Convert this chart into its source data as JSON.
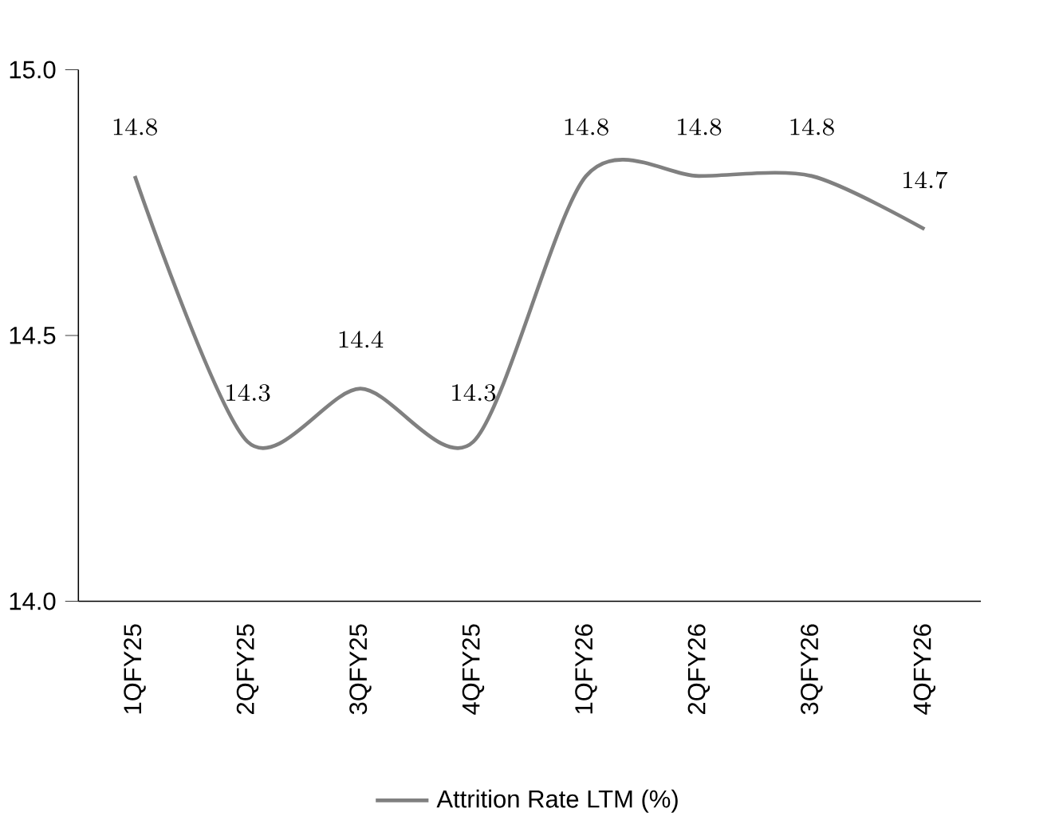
{
  "chart_data": {
    "type": "line",
    "categories": [
      "1QFY25",
      "2QFY25",
      "3QFY25",
      "4QFY25",
      "1QFY26",
      "2QFY26",
      "3QFY26",
      "4QFY26"
    ],
    "series": [
      {
        "name": "Attrition Rate LTM (%)",
        "color": "#808080",
        "values": [
          14.8,
          14.3,
          14.4,
          14.3,
          14.8,
          14.8,
          14.8,
          14.7
        ]
      }
    ],
    "ylim": [
      14.0,
      15.0
    ],
    "yticks": [
      {
        "value": 14.0,
        "label": "14.0"
      },
      {
        "value": 14.5,
        "label": "14.5"
      },
      {
        "value": 15.0,
        "label": "15.0"
      }
    ],
    "data_labels": true,
    "legend": "bottom",
    "grid": false,
    "marker": "none",
    "line_style": "solid"
  }
}
